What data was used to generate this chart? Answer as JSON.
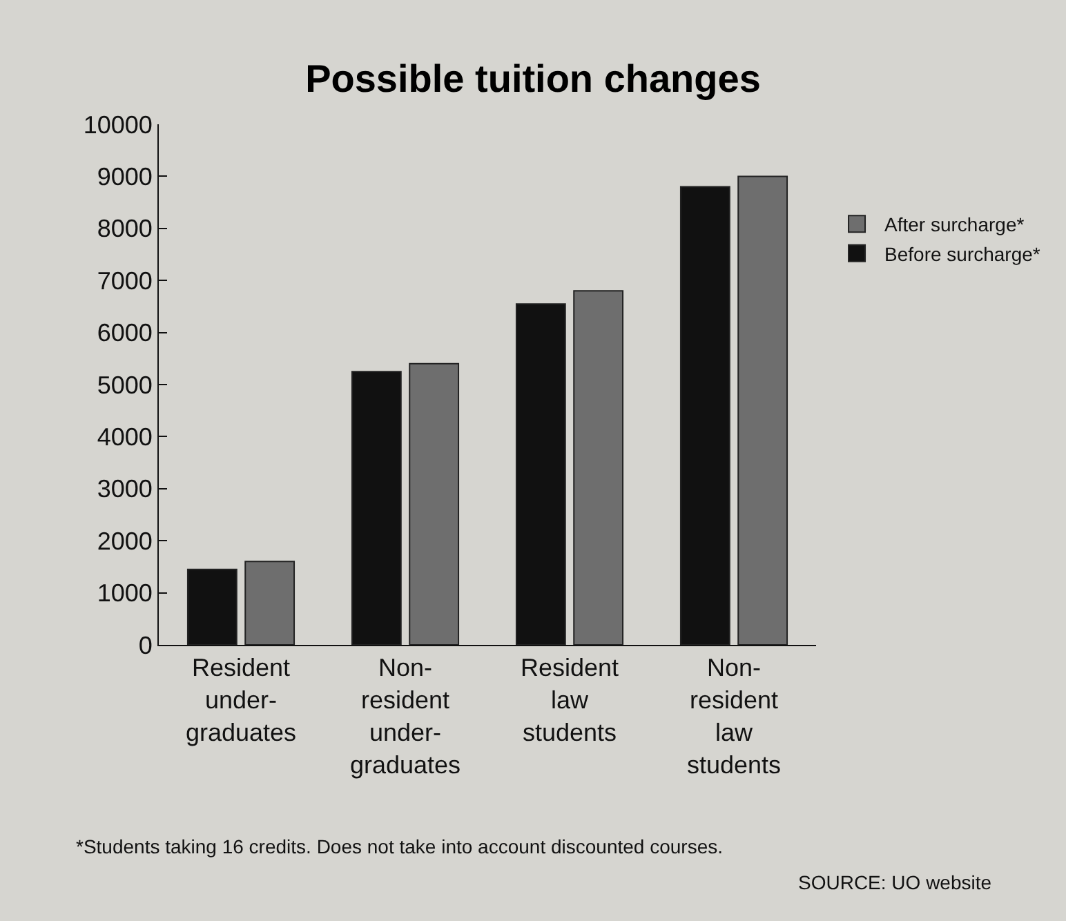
{
  "chart_data": {
    "type": "bar",
    "title": "Possible tuition changes",
    "categories": [
      "Resident\nunder-\ngraduates",
      "Non-\nresident\nunder-\ngraduates",
      "Resident\nlaw\nstudents",
      "Non-\nresident\nlaw\nstudents"
    ],
    "series": [
      {
        "name": "Before surcharge*",
        "color": "#111111",
        "values": [
          1450,
          5250,
          6550,
          8800
        ]
      },
      {
        "name": "After surcharge*",
        "color": "#6e6e6e",
        "values": [
          1600,
          5400,
          6800,
          9000
        ]
      }
    ],
    "ylim": [
      0,
      10000
    ],
    "yticks": [
      0,
      1000,
      2000,
      3000,
      4000,
      5000,
      6000,
      7000,
      8000,
      9000,
      10000
    ],
    "grid": false,
    "legend": "right",
    "annotations": [
      "*Students taking 16 credits. Does not take into account discounted courses.",
      "SOURCE: UO website"
    ]
  }
}
